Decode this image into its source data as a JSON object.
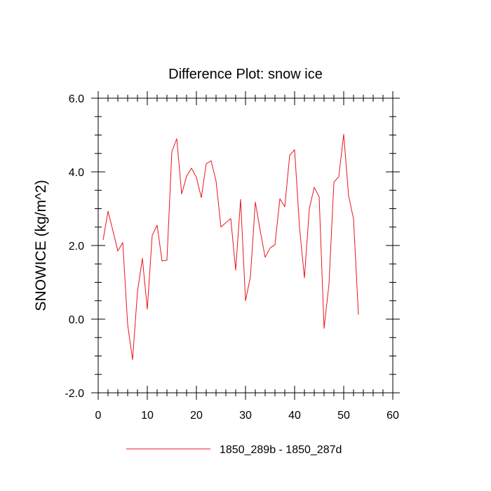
{
  "chart_data": {
    "type": "line",
    "title": "Difference Plot: snow ice",
    "xlabel": "",
    "ylabel": "SNOWICE  (kg/m^2)",
    "xlim": [
      0,
      60
    ],
    "ylim": [
      -2.0,
      6.0
    ],
    "xticks": [
      0,
      10,
      20,
      30,
      40,
      50,
      60
    ],
    "xtick_labels": [
      "0",
      "10",
      "20",
      "30",
      "40",
      "50",
      "60"
    ],
    "yticks": [
      -2.0,
      0.0,
      2.0,
      4.0,
      6.0
    ],
    "ytick_labels": [
      "-2.0",
      "0.0",
      "2.0",
      "4.0",
      "6.0"
    ],
    "x_minor_step": 2,
    "y_minor_step": 0.5,
    "grid": false,
    "legend_position": "bottom-center",
    "series": [
      {
        "name": "1850_289b - 1850_287d",
        "color": "#e8141b",
        "x": [
          1,
          2,
          3,
          4,
          5,
          6,
          7,
          8,
          9,
          10,
          11,
          12,
          13,
          14,
          15,
          16,
          17,
          18,
          19,
          20,
          21,
          22,
          23,
          24,
          25,
          26,
          27,
          28,
          29,
          30,
          31,
          32,
          33,
          34,
          35,
          36,
          37,
          38,
          39,
          40,
          41,
          42,
          43,
          44,
          45,
          46,
          47,
          48,
          49,
          50,
          51,
          52,
          53
        ],
        "values": [
          2.15,
          2.93,
          2.4,
          1.85,
          2.08,
          -0.15,
          -1.1,
          0.75,
          1.65,
          0.27,
          2.28,
          2.55,
          1.58,
          1.6,
          4.55,
          4.9,
          3.4,
          3.88,
          4.1,
          3.85,
          3.3,
          4.22,
          4.3,
          3.75,
          2.5,
          2.62,
          2.73,
          1.33,
          3.25,
          0.5,
          1.15,
          3.18,
          2.4,
          1.68,
          1.93,
          2.02,
          3.27,
          3.05,
          4.45,
          4.6,
          2.5,
          1.12,
          3.0,
          3.58,
          3.32,
          -0.25,
          0.95,
          3.72,
          3.87,
          5.02,
          3.35,
          2.72,
          0.12
        ]
      }
    ]
  }
}
